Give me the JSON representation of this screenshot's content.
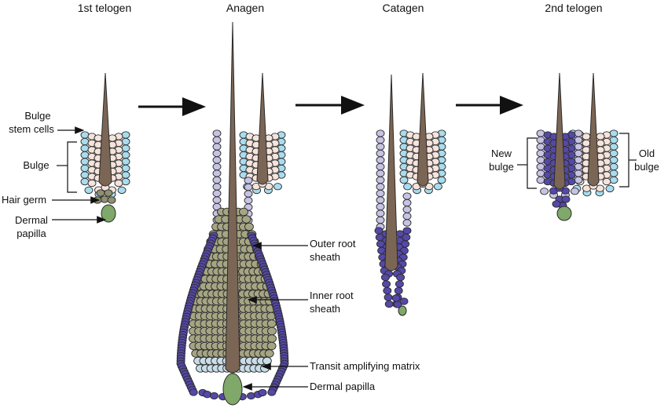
{
  "stages": {
    "first_telogen": "1st telogen",
    "anagen": "Anagen",
    "catagen": "Catagen",
    "second_telogen": "2nd telogen"
  },
  "labels": {
    "bulge_stem_cells_1": "Bulge",
    "bulge_stem_cells_2": "stem cells",
    "bulge": "Bulge",
    "hair_germ": "Hair germ",
    "dermal_papilla_1": "Dermal",
    "dermal_papilla_2": "papilla",
    "outer_root_sheath_1": "Outer root",
    "outer_root_sheath_2": "sheath",
    "inner_root_sheath_1": "Inner root",
    "inner_root_sheath_2": "sheath",
    "transit_amplifying_matrix": "Transit amplifying matrix",
    "dermal_papilla_anagen": "Dermal papilla",
    "new_bulge_1": "New",
    "new_bulge_2": "bulge",
    "old_bulge_1": "Old",
    "old_bulge_2": "bulge"
  },
  "colors": {
    "hair_shaft": "#7b6555",
    "bulge_stem_cell": "#a8dcee",
    "bulge_cell": "#f5e4dc",
    "hair_germ": "#8f8f72",
    "dermal_papilla": "#7fa86a",
    "outer_root_sheath": "#c6c3e4",
    "outer_root_sheath_dark": "#5548a8",
    "inner_root_sheath": "#a6a583",
    "matrix": "#c9dde8",
    "outline": "#2b2b2b"
  }
}
